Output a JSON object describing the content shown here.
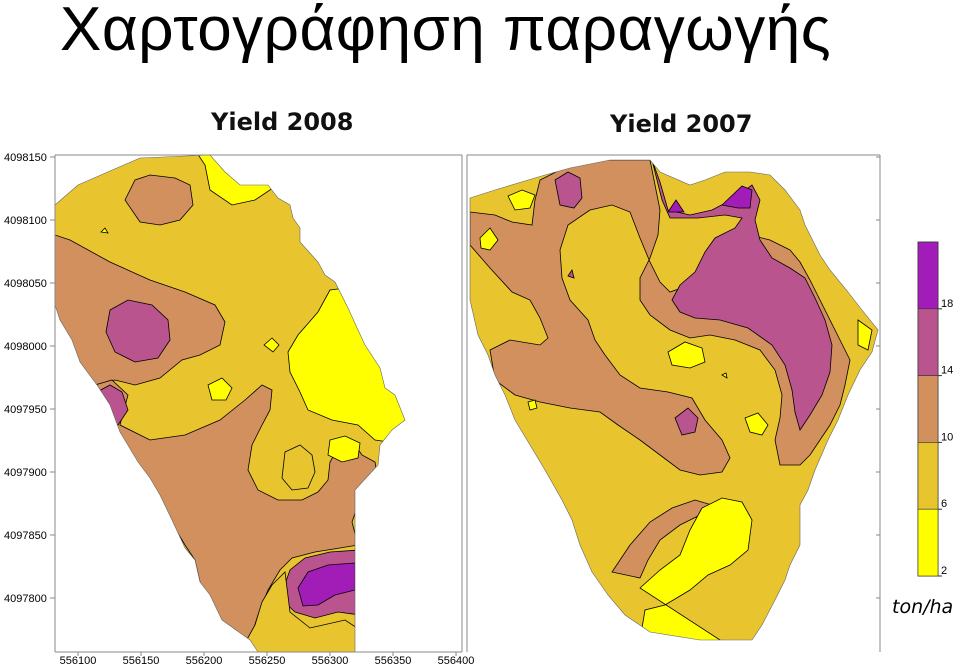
{
  "slide_title": "Χαρτογράφηση παραγωγής",
  "maps": [
    {
      "title": "Yield 2008"
    },
    {
      "title": "Yield 2007"
    }
  ],
  "axes": {
    "y_ticks": [
      "4098150",
      "4098100",
      "4098050",
      "4098000",
      "4097950",
      "4097900",
      "4097850",
      "4097800"
    ],
    "x_ticks": [
      "556100",
      "556150",
      "556200",
      "556250",
      "556300",
      "556350",
      "556400"
    ]
  },
  "legend": {
    "unit": "ton/ha",
    "breaks": [
      "18",
      "14",
      "10",
      "6",
      "2"
    ],
    "classes": [
      {
        "range": "18+",
        "color": "#a21db8"
      },
      {
        "range": "14-18",
        "color": "#b9548e"
      },
      {
        "range": "10-14",
        "color": "#d1905e"
      },
      {
        "range": "6-10",
        "color": "#e8c52e"
      },
      {
        "range": "2-6",
        "color": "#ffff00"
      }
    ]
  },
  "colors": {
    "class_2_6": "#ffff00",
    "class_6_10": "#e8c52e",
    "class_10_14": "#d1905e",
    "class_14_18": "#b9548e",
    "class_18_plus": "#a21db8"
  }
}
